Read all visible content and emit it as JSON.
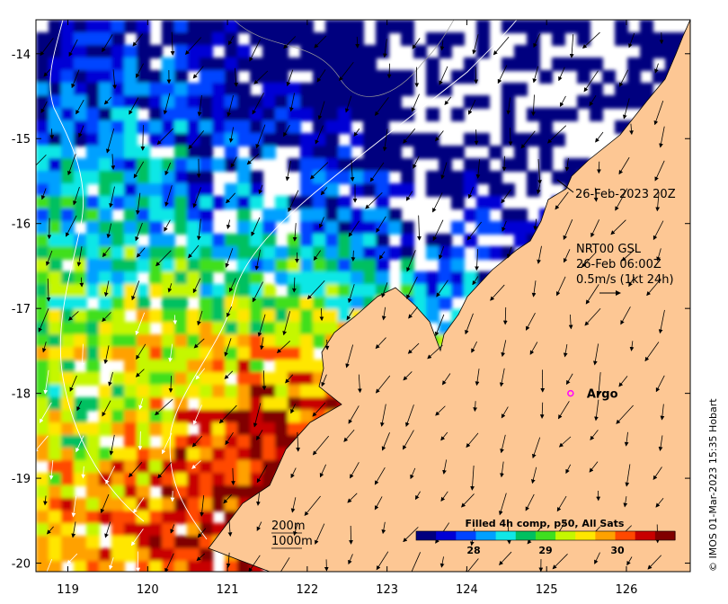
{
  "map": {
    "lon_range": [
      118.6,
      126.8
    ],
    "lat_range": [
      -20.1,
      -13.6
    ],
    "x_ticks": [
      "119",
      "120",
      "121",
      "122",
      "123",
      "124",
      "125",
      "126"
    ],
    "y_ticks": [
      "-14",
      "-15",
      "-16",
      "-17",
      "-18",
      "-19",
      "-20"
    ],
    "x_tick_values": [
      119,
      120,
      121,
      122,
      123,
      124,
      125,
      126
    ],
    "y_tick_values": [
      -14,
      -15,
      -16,
      -17,
      -18,
      -19,
      -20
    ],
    "land_color": "#fdc794",
    "no_data_color": "#ffffff"
  },
  "annotations": {
    "sat_time": "26-Feb-2023 20Z",
    "current_line1": "NRT00 GSL",
    "current_line2": "26-Feb 06:00Z",
    "current_line3": "0.5m/s (1kt 24h)",
    "argo_label": "Argo",
    "argo_lon": 125.3,
    "argo_lat": -18.0,
    "depth_200": "200m",
    "depth_1000": "1000m"
  },
  "colorbar": {
    "title": "Filled 4h comp, p50, All Sats",
    "ticks": [
      "28",
      "29",
      "30"
    ],
    "tick_values": [
      28,
      29,
      30
    ],
    "range": [
      27.2,
      30.8
    ],
    "colors": [
      "#00007f",
      "#0000d5",
      "#0044ff",
      "#00a0ff",
      "#11e7e6",
      "#00c060",
      "#3fdf1f",
      "#c5f700",
      "#ffe600",
      "#ffa100",
      "#ff4800",
      "#c80000",
      "#800000"
    ]
  },
  "credit": "© IMOS 01-Mar-2023 15:35 Hobart"
}
